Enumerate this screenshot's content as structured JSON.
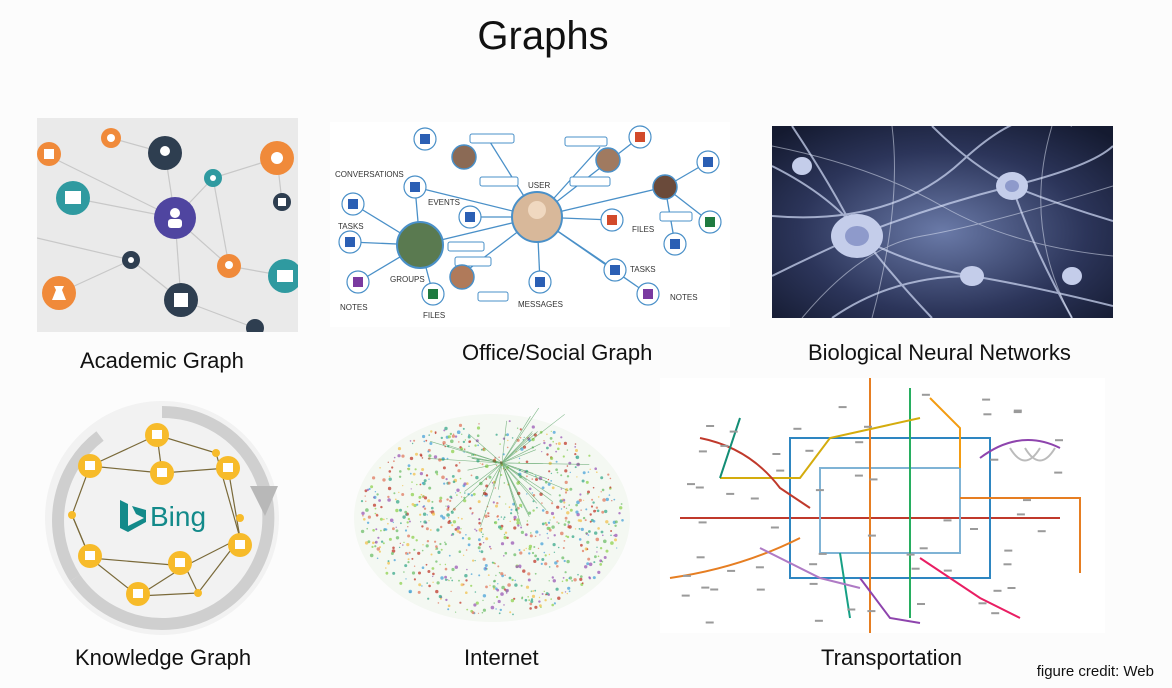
{
  "slide": {
    "title": "Graphs",
    "credit": "figure credit: Web"
  },
  "panels": {
    "academic": {
      "caption": "Academic Graph"
    },
    "office": {
      "caption": "Office/Social Graph",
      "labels": {
        "conversations": "CONVERSATIONS",
        "events": "EVENTS",
        "tasks_left": "TASKS",
        "groups": "GROUPS",
        "notes_left": "NOTES",
        "files_left": "FILES",
        "user": "USER",
        "files_right": "FILES",
        "tasks_right": "TASKS",
        "messages": "MESSAGES",
        "notes_right": "NOTES"
      }
    },
    "neural": {
      "caption": "Biological Neural Networks"
    },
    "knowledge": {
      "caption": "Knowledge Graph",
      "logo": "Bing"
    },
    "internet": {
      "caption": "Internet"
    },
    "transport": {
      "caption": "Transportation"
    }
  }
}
